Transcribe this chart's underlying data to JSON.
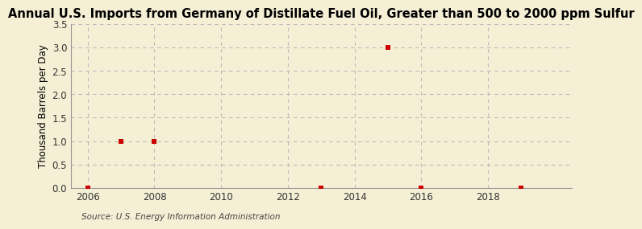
{
  "title": "Annual U.S. Imports from Germany of Distillate Fuel Oil, Greater than 500 to 2000 ppm Sulfur",
  "ylabel": "Thousand Barrels per Day",
  "source": "Source: U.S. Energy Information Administration",
  "background_color": "#f5efd5",
  "plot_background_color": "#f5efd5",
  "data_points": [
    {
      "year": 2006,
      "value": 0.0
    },
    {
      "year": 2007,
      "value": 1.0
    },
    {
      "year": 2008,
      "value": 1.0
    },
    {
      "year": 2013,
      "value": 0.0
    },
    {
      "year": 2015,
      "value": 3.0
    },
    {
      "year": 2016,
      "value": 0.0
    },
    {
      "year": 2019,
      "value": 0.0
    }
  ],
  "marker_color": "#cc0000",
  "marker_size": 4,
  "marker_style": "s",
  "xlim": [
    2005.5,
    2020.5
  ],
  "ylim": [
    0.0,
    3.5
  ],
  "yticks": [
    0.0,
    0.5,
    1.0,
    1.5,
    2.0,
    2.5,
    3.0,
    3.5
  ],
  "xticks": [
    2006,
    2008,
    2010,
    2012,
    2014,
    2016,
    2018
  ],
  "grid_color": "#bbbbbb",
  "grid_linestyle": "--",
  "title_fontsize": 10.5,
  "label_fontsize": 8.5,
  "tick_fontsize": 8.5,
  "source_fontsize": 7.5
}
